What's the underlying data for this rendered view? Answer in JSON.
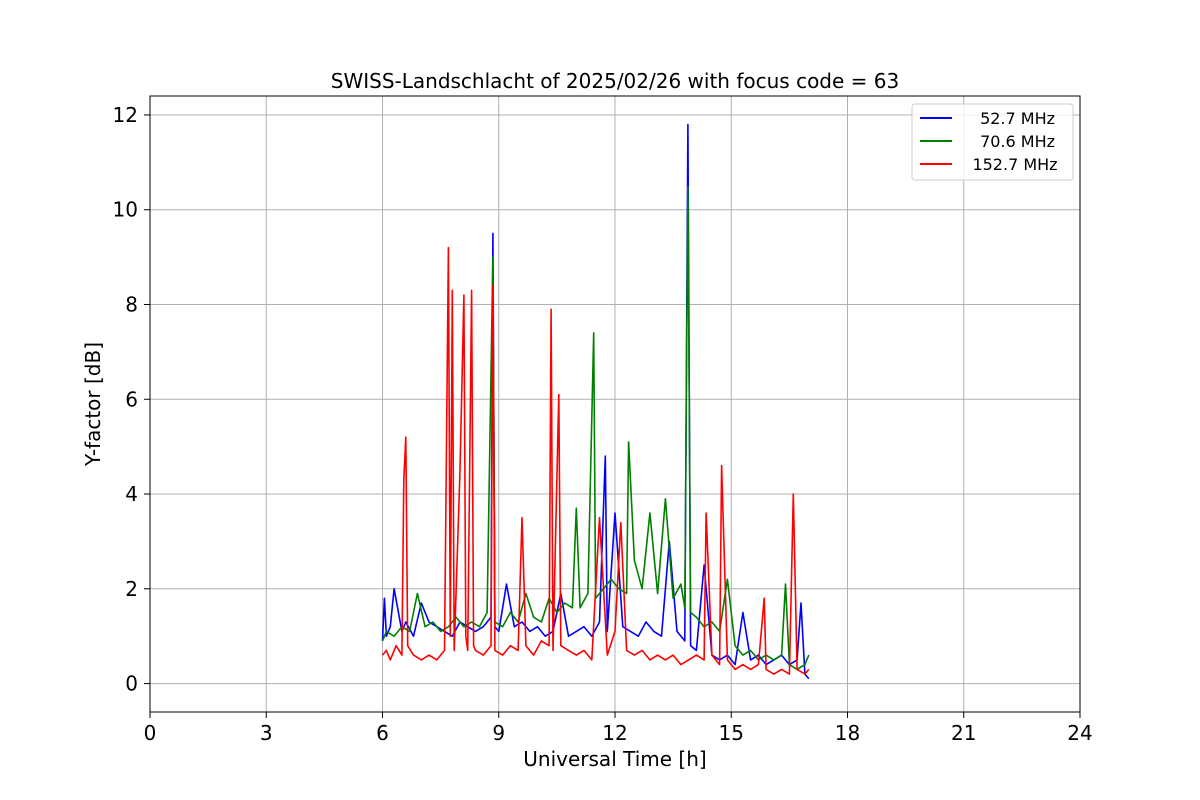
{
  "chart_data": {
    "type": "line",
    "title": "SWISS-Landschlacht of 2025/02/26 with focus code = 63",
    "xlabel": "Universal Time [h]",
    "ylabel": "Y-factor [dB]",
    "xlim": [
      0,
      24
    ],
    "ylim": [
      -0.6,
      12.4
    ],
    "xticks": [
      0,
      3,
      6,
      9,
      12,
      15,
      18,
      21,
      24
    ],
    "yticks": [
      0,
      2,
      4,
      6,
      8,
      10,
      12
    ],
    "grid": true,
    "legend_position": "top-right",
    "series": [
      {
        "name": " 52.7 MHz",
        "color": "#0000ff",
        "x": [
          6.0,
          6.05,
          6.1,
          6.2,
          6.3,
          6.5,
          6.6,
          6.8,
          7.0,
          7.2,
          7.4,
          7.6,
          7.8,
          8.0,
          8.2,
          8.4,
          8.6,
          8.8,
          8.85,
          8.9,
          9.0,
          9.2,
          9.4,
          9.6,
          9.8,
          10.0,
          10.2,
          10.4,
          10.6,
          10.8,
          11.0,
          11.2,
          11.4,
          11.6,
          11.75,
          11.8,
          12.0,
          12.2,
          12.4,
          12.6,
          12.8,
          13.0,
          13.2,
          13.4,
          13.6,
          13.8,
          13.88,
          13.95,
          14.1,
          14.3,
          14.5,
          14.7,
          14.9,
          15.1,
          15.3,
          15.5,
          15.7,
          15.9,
          16.1,
          16.3,
          16.5,
          16.7,
          16.8,
          16.9,
          17.0
        ],
        "y": [
          0.9,
          1.8,
          1.0,
          1.2,
          2.0,
          1.1,
          1.3,
          1.0,
          1.7,
          1.3,
          1.2,
          1.1,
          1.0,
          1.3,
          1.2,
          1.1,
          1.2,
          1.4,
          9.5,
          1.2,
          1.1,
          2.1,
          1.2,
          1.3,
          1.1,
          1.2,
          1.0,
          1.1,
          1.9,
          1.0,
          1.1,
          1.2,
          1.0,
          1.3,
          4.8,
          1.1,
          3.6,
          1.2,
          1.1,
          1.0,
          1.3,
          1.1,
          1.0,
          3.0,
          1.1,
          0.9,
          11.8,
          0.8,
          0.7,
          2.5,
          0.6,
          0.5,
          0.6,
          0.4,
          1.5,
          0.5,
          0.6,
          0.4,
          0.5,
          0.6,
          0.4,
          0.5,
          1.7,
          0.2,
          0.1
        ]
      },
      {
        "name": " 70.6 MHz",
        "color": "#008000",
        "x": [
          6.0,
          6.1,
          6.3,
          6.5,
          6.7,
          6.9,
          7.1,
          7.3,
          7.5,
          7.7,
          7.9,
          8.1,
          8.3,
          8.5,
          8.7,
          8.85,
          8.9,
          9.1,
          9.3,
          9.5,
          9.7,
          9.9,
          10.1,
          10.3,
          10.5,
          10.7,
          10.9,
          11.0,
          11.1,
          11.3,
          11.45,
          11.5,
          11.7,
          11.9,
          12.1,
          12.3,
          12.35,
          12.5,
          12.7,
          12.9,
          13.1,
          13.3,
          13.5,
          13.7,
          13.8,
          13.88,
          13.95,
          14.1,
          14.3,
          14.5,
          14.7,
          14.9,
          15.1,
          15.3,
          15.5,
          15.7,
          15.9,
          16.1,
          16.3,
          16.4,
          16.5,
          16.7,
          16.9,
          17.0
        ],
        "y": [
          0.9,
          1.1,
          1.0,
          1.2,
          1.1,
          1.9,
          1.2,
          1.3,
          1.1,
          1.2,
          1.4,
          1.2,
          1.3,
          1.2,
          1.5,
          9.0,
          1.3,
          1.2,
          1.5,
          1.3,
          1.9,
          1.4,
          1.3,
          1.8,
          1.5,
          1.7,
          1.6,
          3.7,
          1.6,
          1.9,
          7.4,
          1.8,
          2.0,
          2.2,
          2.0,
          1.9,
          5.1,
          2.6,
          2.0,
          3.6,
          1.9,
          3.9,
          1.8,
          2.1,
          1.6,
          10.5,
          1.5,
          1.4,
          1.2,
          1.3,
          1.1,
          2.2,
          0.8,
          0.6,
          0.7,
          0.5,
          0.6,
          0.5,
          0.6,
          2.1,
          0.4,
          0.3,
          0.4,
          0.6
        ]
      },
      {
        "name": "152.7 MHz",
        "color": "#ff0000",
        "x": [
          6.0,
          6.1,
          6.2,
          6.35,
          6.5,
          6.55,
          6.6,
          6.65,
          6.8,
          7.0,
          7.2,
          7.4,
          7.6,
          7.7,
          7.75,
          7.8,
          7.85,
          8.0,
          8.1,
          8.15,
          8.2,
          8.3,
          8.35,
          8.4,
          8.6,
          8.8,
          8.85,
          8.9,
          9.1,
          9.3,
          9.5,
          9.6,
          9.7,
          9.9,
          10.1,
          10.3,
          10.35,
          10.4,
          10.55,
          10.6,
          10.8,
          11.0,
          11.2,
          11.4,
          11.6,
          11.8,
          12.0,
          12.15,
          12.3,
          12.5,
          12.7,
          12.9,
          13.1,
          13.3,
          13.5,
          13.7,
          13.9,
          14.1,
          14.3,
          14.35,
          14.5,
          14.7,
          14.75,
          14.9,
          15.1,
          15.3,
          15.5,
          15.7,
          15.85,
          15.9,
          16.1,
          16.3,
          16.5,
          16.6,
          16.7,
          16.9,
          17.0
        ],
        "y": [
          0.6,
          0.7,
          0.5,
          0.8,
          0.6,
          4.3,
          5.2,
          0.8,
          0.6,
          0.5,
          0.6,
          0.5,
          0.7,
          9.2,
          1.0,
          8.3,
          0.7,
          4.5,
          8.2,
          1.0,
          0.7,
          8.3,
          0.8,
          0.7,
          0.6,
          0.8,
          8.4,
          0.7,
          0.6,
          0.8,
          0.7,
          3.5,
          0.8,
          0.6,
          0.9,
          0.8,
          7.9,
          0.7,
          6.1,
          0.8,
          0.7,
          0.6,
          0.7,
          0.5,
          3.5,
          0.6,
          1.1,
          3.4,
          0.7,
          0.6,
          0.7,
          0.5,
          0.6,
          0.5,
          0.6,
          0.4,
          0.5,
          0.6,
          0.5,
          3.6,
          0.6,
          0.4,
          4.6,
          0.5,
          0.3,
          0.4,
          0.3,
          0.4,
          1.8,
          0.3,
          0.2,
          0.3,
          0.2,
          4.0,
          0.3,
          0.2,
          0.3
        ]
      }
    ]
  }
}
